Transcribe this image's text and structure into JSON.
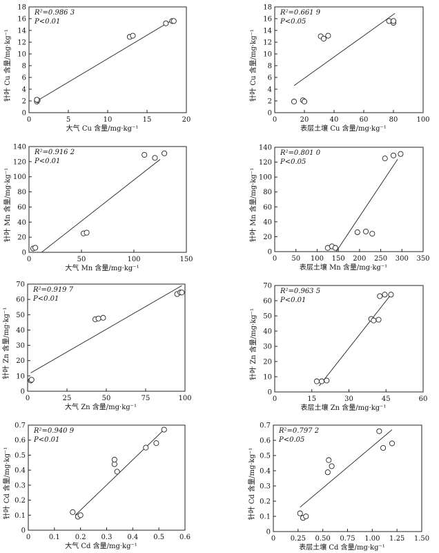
{
  "chart_data": [
    {
      "id": "cu-air",
      "type": "scatter",
      "xlabel": "大气 Cu 含量/mg·kg⁻¹",
      "ylabel": "针叶 Cu 含量/mg·kg⁻¹",
      "xlim": [
        0,
        20
      ],
      "ylim": [
        0,
        18
      ],
      "xticks": [
        0,
        5,
        10,
        15,
        20
      ],
      "yticks": [
        0,
        2,
        4,
        6,
        8,
        10,
        12,
        14,
        16,
        18
      ],
      "r2_label": "R²=0.986 3",
      "p_label": "P<0.01",
      "points": [
        [
          1,
          1.9
        ],
        [
          1.1,
          2.1
        ],
        [
          1,
          2.2
        ],
        [
          12.8,
          12.9
        ],
        [
          13.2,
          13.1
        ],
        [
          17.4,
          15.2
        ],
        [
          18.2,
          15.6
        ],
        [
          18.4,
          15.6
        ]
      ],
      "fit": [
        [
          1,
          2.0
        ],
        [
          18.4,
          15.9
        ]
      ]
    },
    {
      "id": "cu-soil",
      "type": "scatter",
      "xlabel": "表层土壤 Cu 含量/mg·kg⁻¹",
      "ylabel": "针叶 Cu 含量/mg·kg⁻¹",
      "xlim": [
        0,
        100
      ],
      "ylim": [
        0,
        18
      ],
      "xticks": [
        0,
        20,
        40,
        60,
        80,
        100
      ],
      "yticks": [
        0,
        2,
        4,
        6,
        8,
        10,
        12,
        14,
        16,
        18
      ],
      "r2_label": "R²=0.661 9",
      "p_label": "P<0.05",
      "points": [
        [
          13,
          1.9
        ],
        [
          19,
          2.1
        ],
        [
          20,
          1.9
        ],
        [
          31,
          13
        ],
        [
          33,
          12.6
        ],
        [
          36,
          13.1
        ],
        [
          77,
          15.6
        ],
        [
          80,
          15.3
        ],
        [
          80,
          15.6
        ]
      ],
      "fit": [
        [
          13,
          4.6
        ],
        [
          81,
          16.9
        ]
      ]
    },
    {
      "id": "mn-air",
      "type": "scatter",
      "xlabel": "大气 Mn 含量/mg·kg⁻¹",
      "ylabel": "针叶 Mn 含量/mg·kg⁻¹",
      "xlim": [
        0,
        150
      ],
      "ylim": [
        0,
        140
      ],
      "xticks": [
        0,
        50,
        100,
        150
      ],
      "yticks": [
        0,
        20,
        40,
        60,
        80,
        100,
        120,
        140
      ],
      "r2_label": "R²=0.916 2",
      "p_label": "P<0.01",
      "points": [
        [
          4,
          5
        ],
        [
          6,
          6
        ],
        [
          52,
          25
        ],
        [
          55,
          26
        ],
        [
          110,
          129
        ],
        [
          120,
          125
        ],
        [
          129,
          131
        ]
      ],
      "fit": [
        [
          12,
          0
        ],
        [
          125,
          123
        ]
      ]
    },
    {
      "id": "mn-soil",
      "type": "scatter",
      "xlabel": "表层土壤 Mn 含量/mg·kg⁻¹",
      "ylabel": "针叶 Mn 含量/mg·kg⁻¹",
      "xlim": [
        0,
        350
      ],
      "ylim": [
        0,
        140
      ],
      "xticks": [
        0,
        50,
        100,
        150,
        200,
        250,
        300,
        350
      ],
      "yticks": [
        0,
        20,
        40,
        60,
        80,
        100,
        120,
        140
      ],
      "r2_label": "R²=0.801 0",
      "p_label": "P<0.05",
      "points": [
        [
          125,
          5
        ],
        [
          135,
          7
        ],
        [
          143,
          5
        ],
        [
          195,
          26
        ],
        [
          215,
          27
        ],
        [
          230,
          24
        ],
        [
          260,
          125
        ],
        [
          280,
          129
        ],
        [
          297,
          131
        ]
      ],
      "fit": [
        [
          145,
          0
        ],
        [
          290,
          124
        ]
      ]
    },
    {
      "id": "zn-air",
      "type": "scatter",
      "xlabel": "大气 Zn 含量/mg·kg⁻¹",
      "ylabel": "针叶 Zn 含量/mg·kg⁻¹",
      "xlim": [
        0,
        100
      ],
      "ylim": [
        0,
        70
      ],
      "xticks": [
        0,
        25,
        50,
        75,
        100
      ],
      "yticks": [
        0,
        10,
        20,
        30,
        40,
        50,
        60,
        70
      ],
      "r2_label": "R²=0.919 7",
      "p_label": "P<0.01",
      "points": [
        [
          2,
          7
        ],
        [
          2.5,
          7.5
        ],
        [
          43,
          47
        ],
        [
          45,
          47.5
        ],
        [
          48,
          48
        ],
        [
          95,
          63.5
        ],
        [
          97,
          64.5
        ],
        [
          98,
          64.5
        ]
      ],
      "fit": [
        [
          2,
          12
        ],
        [
          98,
          69
        ]
      ]
    },
    {
      "id": "zn-soil",
      "type": "scatter",
      "xlabel": "表层土壤 Zn 含量/mg·kg⁻¹",
      "ylabel": "针叶 Zn 含量/mg·kg⁻¹",
      "xlim": [
        0,
        60
      ],
      "ylim": [
        0,
        70
      ],
      "xticks": [
        0,
        15,
        30,
        45,
        60
      ],
      "yticks": [
        0,
        10,
        20,
        30,
        40,
        50,
        60,
        70
      ],
      "r2_label": "R²=0.963 5",
      "p_label": "P<0.01",
      "points": [
        [
          17,
          7
        ],
        [
          19,
          7
        ],
        [
          21,
          7.5
        ],
        [
          39,
          48
        ],
        [
          40,
          47
        ],
        [
          42,
          47.5
        ],
        [
          42.5,
          63
        ],
        [
          44.5,
          64
        ],
        [
          47,
          64
        ]
      ],
      "fit": [
        [
          18,
          4
        ],
        [
          47,
          64
        ]
      ]
    },
    {
      "id": "cd-air",
      "type": "scatter",
      "xlabel": "大气 Cd 含量/mg·kg⁻¹",
      "ylabel": "针叶 Cd 含量/mg·kg⁻¹",
      "xlim": [
        0,
        0.6
      ],
      "ylim": [
        0,
        0.7
      ],
      "xticks": [
        0,
        0.1,
        0.2,
        0.3,
        0.4,
        0.5,
        0.6
      ],
      "yticks": [
        0,
        0.1,
        0.2,
        0.3,
        0.4,
        0.5,
        0.6,
        0.7
      ],
      "r2_label": "R²=0.940 9",
      "p_label": "P<0.01",
      "points": [
        [
          0.17,
          0.12
        ],
        [
          0.19,
          0.09
        ],
        [
          0.2,
          0.1
        ],
        [
          0.33,
          0.44
        ],
        [
          0.33,
          0.47
        ],
        [
          0.34,
          0.39
        ],
        [
          0.45,
          0.55
        ],
        [
          0.49,
          0.58
        ],
        [
          0.52,
          0.67
        ]
      ],
      "fit": [
        [
          0.18,
          0.1
        ],
        [
          0.52,
          0.67
        ]
      ]
    },
    {
      "id": "cd-soil",
      "type": "scatter",
      "xlabel": "表层土壤 Cd 含量/mg·kg⁻¹",
      "ylabel": "针叶 Cd 含量/mg·kg⁻¹",
      "xlim": [
        0,
        1.5
      ],
      "ylim": [
        0,
        0.7
      ],
      "xticks": [
        0,
        0.25,
        0.5,
        0.75,
        1.0,
        1.25,
        1.5
      ],
      "xtick_labels": [
        "0",
        "0.25",
        "0.50",
        "0.75",
        "1.00",
        "1.25",
        "1.50"
      ],
      "yticks": [
        0,
        0.1,
        0.2,
        0.3,
        0.4,
        0.5,
        0.6,
        0.7
      ],
      "r2_label": "R²=0.797 2",
      "p_label": "P<0.05",
      "points": [
        [
          0.27,
          0.12
        ],
        [
          0.3,
          0.09
        ],
        [
          0.33,
          0.1
        ],
        [
          0.55,
          0.39
        ],
        [
          0.56,
          0.47
        ],
        [
          0.59,
          0.43
        ],
        [
          1.07,
          0.66
        ],
        [
          1.11,
          0.55
        ],
        [
          1.2,
          0.58
        ]
      ],
      "fit": [
        [
          0.27,
          0.16
        ],
        [
          1.2,
          0.67
        ]
      ]
    }
  ]
}
